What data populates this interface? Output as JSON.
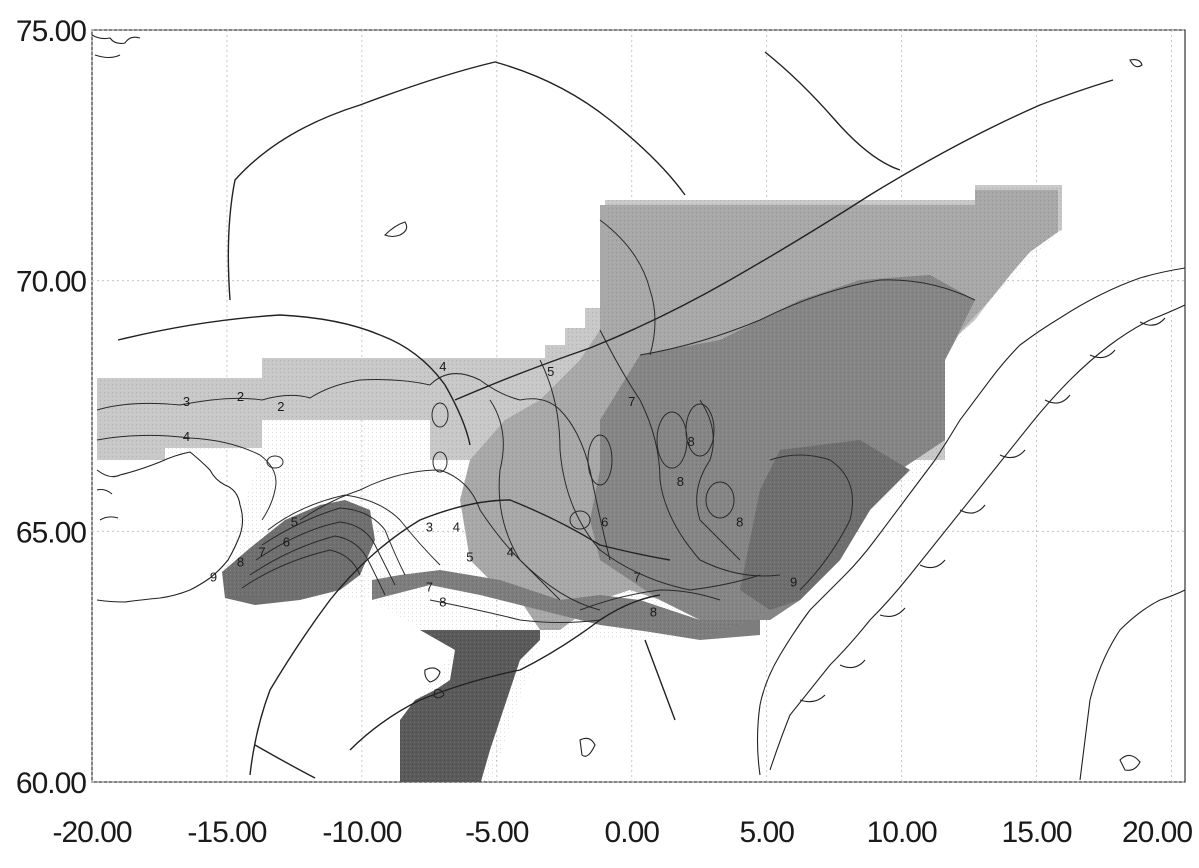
{
  "map": {
    "x_axis": {
      "ticks": [
        {
          "value": -20,
          "label": "-20.00"
        },
        {
          "value": -15,
          "label": "-15.00"
        },
        {
          "value": -10,
          "label": "-10.00"
        },
        {
          "value": -5,
          "label": "-5.00"
        },
        {
          "value": 0,
          "label": "0.00"
        },
        {
          "value": 5,
          "label": "5.00"
        },
        {
          "value": 10,
          "label": "10.00"
        },
        {
          "value": 15,
          "label": "15.00"
        },
        {
          "value": 20,
          "label": "20.00"
        }
      ],
      "range": [
        -20,
        20.5
      ]
    },
    "y_axis": {
      "ticks": [
        {
          "value": 75,
          "label": "75.00"
        },
        {
          "value": 70,
          "label": "70.00"
        },
        {
          "value": 65,
          "label": "65.00"
        },
        {
          "value": 60,
          "label": "60.00"
        }
      ],
      "range": [
        60,
        75
      ]
    },
    "grid": true,
    "field_shading": "grayscale, darker = higher value",
    "colors": {
      "shade_light": "#c6c6c6",
      "shade_mid": "#9f9f9f",
      "shade_dark": "#6e6e6e",
      "shade_darkest": "#4a4a4a",
      "line": "#222222"
    },
    "contour_labels": [
      {
        "lon": -7.0,
        "lat": 68.2,
        "text": "4"
      },
      {
        "lon": -3.0,
        "lat": 68.1,
        "text": "5"
      },
      {
        "lon": -16.5,
        "lat": 67.5,
        "text": "3"
      },
      {
        "lon": -14.5,
        "lat": 67.6,
        "text": "2"
      },
      {
        "lon": -13.0,
        "lat": 67.4,
        "text": "2"
      },
      {
        "lon": -16.5,
        "lat": 66.8,
        "text": "4"
      },
      {
        "lon": -12.5,
        "lat": 65.1,
        "text": "5"
      },
      {
        "lon": -12.8,
        "lat": 64.7,
        "text": "6"
      },
      {
        "lon": -13.7,
        "lat": 64.5,
        "text": "7"
      },
      {
        "lon": -14.5,
        "lat": 64.3,
        "text": "8"
      },
      {
        "lon": -15.5,
        "lat": 64.0,
        "text": "9"
      },
      {
        "lon": -7.5,
        "lat": 65.0,
        "text": "3"
      },
      {
        "lon": -6.5,
        "lat": 65.0,
        "text": "4"
      },
      {
        "lon": -6.0,
        "lat": 64.4,
        "text": "5"
      },
      {
        "lon": -4.5,
        "lat": 64.5,
        "text": "4"
      },
      {
        "lon": -1.0,
        "lat": 65.1,
        "text": "6"
      },
      {
        "lon": 0.2,
        "lat": 64.0,
        "text": "7"
      },
      {
        "lon": -7.0,
        "lat": 63.5,
        "text": "8"
      },
      {
        "lon": -7.5,
        "lat": 63.8,
        "text": "7"
      },
      {
        "lon": 2.2,
        "lat": 66.7,
        "text": "8"
      },
      {
        "lon": 1.8,
        "lat": 65.9,
        "text": "8"
      },
      {
        "lon": 4.0,
        "lat": 65.1,
        "text": "8"
      },
      {
        "lon": 6.0,
        "lat": 63.9,
        "text": "9"
      },
      {
        "lon": 0.8,
        "lat": 63.3,
        "text": "8"
      },
      {
        "lon": 0.0,
        "lat": 67.5,
        "text": "7"
      }
    ]
  }
}
